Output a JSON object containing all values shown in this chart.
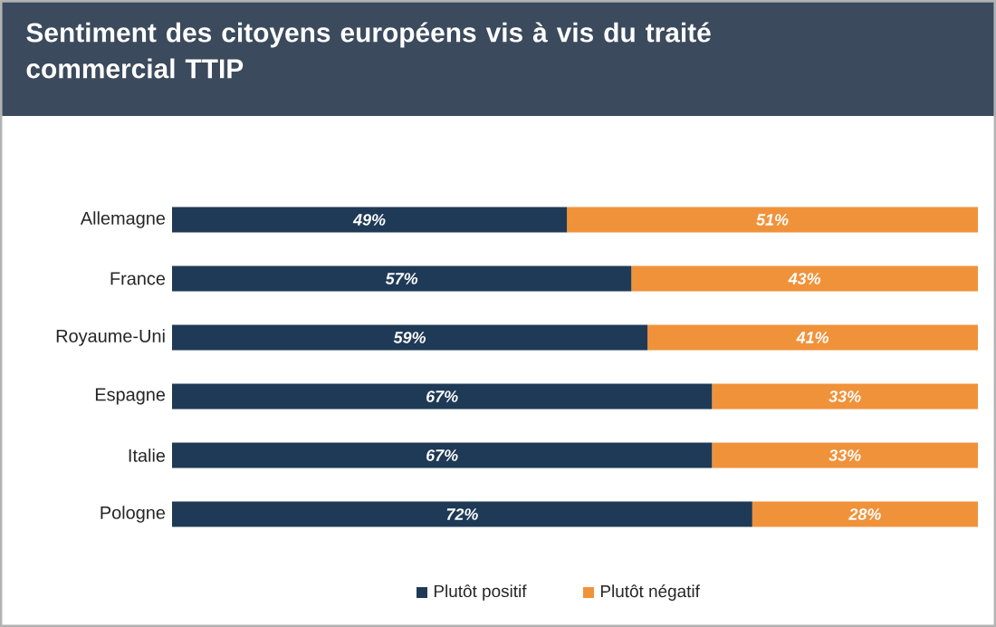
{
  "chart_data": {
    "type": "bar",
    "orientation": "horizontal",
    "stacked": true,
    "title": "Sentiment des citoyens européens vis à vis du traité commercial TTIP",
    "categories": [
      "Allemagne",
      "France",
      "Royaume-Uni",
      "Espagne",
      "Italie",
      "Pologne"
    ],
    "series": [
      {
        "name": "Plutôt positif",
        "color": "#1f3a56",
        "values": [
          49,
          57,
          59,
          67,
          67,
          72
        ],
        "value_labels": [
          "49%",
          "57%",
          "59%",
          "67%",
          "67%",
          "72%"
        ]
      },
      {
        "name": "Plutôt négatif",
        "color": "#f0923a",
        "values": [
          51,
          43,
          41,
          33,
          33,
          28
        ],
        "value_labels": [
          "51%",
          "43%",
          "41%",
          "33%",
          "33%",
          "28%"
        ]
      }
    ],
    "xlim": [
      0,
      100
    ],
    "tick_labels": "y",
    "legend": "bottom"
  }
}
